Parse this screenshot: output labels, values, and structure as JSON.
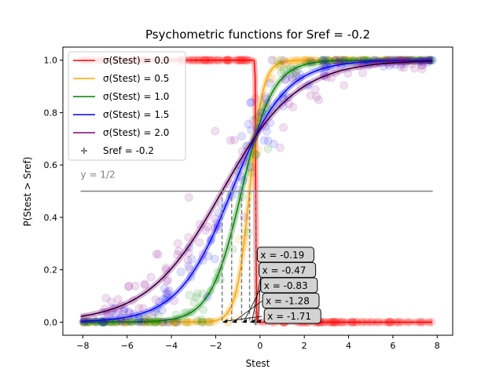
{
  "chart_data": {
    "type": "line",
    "title": "Psychometric functions for Sref = -0.2",
    "xlabel": "Stest",
    "ylabel": "P(Stest > Sref)",
    "xlim": [
      -8.9,
      8.7
    ],
    "ylim": [
      -0.05,
      1.05
    ],
    "xticks": [
      -8,
      -6,
      -4,
      -2,
      0,
      2,
      4,
      6,
      8
    ],
    "xtick_labels": [
      "−8",
      "−6",
      "−4",
      "−2",
      "0",
      "2",
      "4",
      "6",
      "8"
    ],
    "yticks": [
      0.0,
      0.2,
      0.4,
      0.6,
      0.8,
      1.0
    ],
    "ytick_labels": [
      "0.0",
      "0.2",
      "0.4",
      "0.6",
      "0.8",
      "1.0"
    ],
    "x_range": [
      -8.1,
      7.8
    ],
    "intersection": {
      "x": -0.2,
      "y": 0.71
    },
    "series": [
      {
        "name": "σ(Stest) = 0.0",
        "color": "#ff0000",
        "threshold_x": -0.19
      },
      {
        "name": "σ(Stest) = 0.5",
        "color": "#ffa500",
        "threshold_x": -0.47
      },
      {
        "name": "σ(Stest) = 1.0",
        "color": "#008000",
        "threshold_x": -0.83
      },
      {
        "name": "σ(Stest) = 1.5",
        "color": "#0000ff",
        "threshold_x": -1.28
      },
      {
        "name": "σ(Stest) = 2.0",
        "color": "#800080",
        "threshold_x": -1.71
      }
    ],
    "reference_marker": {
      "name": "Sref = -0.2",
      "x": -0.2,
      "color": "#808080"
    },
    "half_line": {
      "y": 0.5,
      "label": "y = 1/2",
      "color": "#808080",
      "x_range": [
        -8.1,
        7.8
      ]
    },
    "annotations": [
      "x = -0.19",
      "x = -0.47",
      "x = -0.83",
      "x = -1.28",
      "x = -1.71"
    ],
    "legend_position": "upper-left",
    "grid": false
  }
}
